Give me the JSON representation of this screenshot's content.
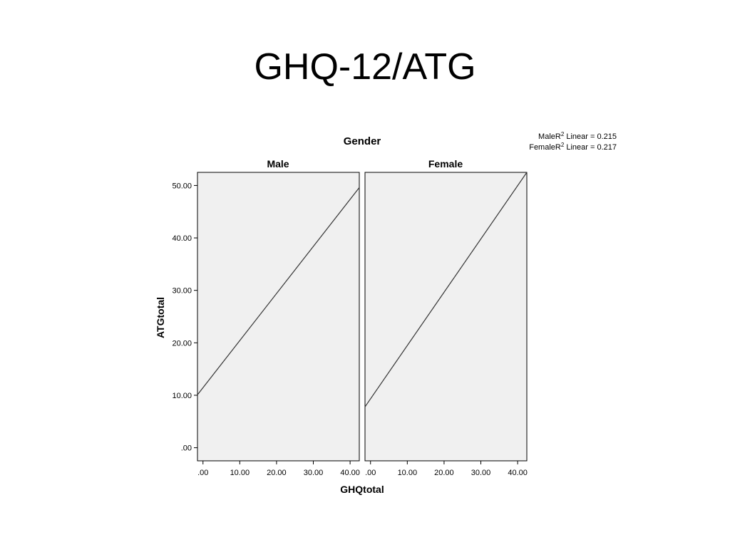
{
  "slide": {
    "title": "GHQ-12/ATG"
  },
  "chart_data": {
    "type": "line",
    "title": "Gender",
    "xlabel": "GHQtotal",
    "ylabel": "ATGtotal",
    "xlim": [
      -1.5,
      42.5
    ],
    "ylim": [
      -2.5,
      52.5
    ],
    "x_ticks": [
      0,
      10,
      20,
      30,
      40
    ],
    "x_tick_labels": [
      ".00",
      "10.00",
      "20.00",
      "30.00",
      "40.00"
    ],
    "y_ticks": [
      0,
      10,
      20,
      30,
      40,
      50
    ],
    "y_tick_labels": [
      ".00",
      "10.00",
      "20.00",
      "30.00",
      "40.00",
      "50.00"
    ],
    "panel_background": "#f0f0f0",
    "line_color": "#333333",
    "legend": {
      "placement": "top-right",
      "entries": [
        {
          "prefix": "MaleR",
          "sup": "2",
          "suffix": " Linear = 0.215"
        },
        {
          "prefix": "FemaleR",
          "sup": "2",
          "suffix": " Linear = 0.217"
        }
      ]
    },
    "panels": [
      {
        "name": "Male",
        "fit": {
          "x": [
            -1.5,
            42.5
          ],
          "y": [
            10.1,
            49.6
          ],
          "r2": 0.215
        }
      },
      {
        "name": "Female",
        "fit": {
          "x": [
            -1.5,
            42.5
          ],
          "y": [
            7.8,
            52.5
          ],
          "r2": 0.217
        }
      }
    ]
  }
}
